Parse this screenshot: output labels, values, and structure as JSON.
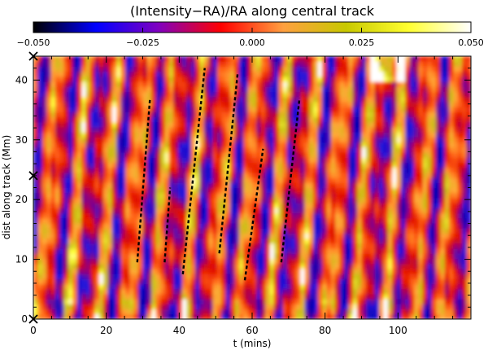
{
  "chart_data": {
    "type": "heatmap",
    "title": "(Intensity−RA)/RA along central track",
    "xlabel": "t (mins)",
    "ylabel": "dist along track (Mm)",
    "xlim": [
      0,
      120
    ],
    "ylim": [
      0,
      44
    ],
    "xticks": [
      0,
      20,
      40,
      60,
      80,
      100
    ],
    "yticks": [
      0,
      10,
      20,
      30,
      40
    ],
    "colorbar": {
      "range": [
        -0.05,
        0.05
      ],
      "ticks": [
        "−0.050",
        "−0.025",
        "0.000",
        "0.025",
        "0.050"
      ],
      "colormap": [
        "#000000",
        "#0000ff",
        "#8000c0",
        "#ff0000",
        "#ffa040",
        "#c8c800",
        "#ffff30",
        "#ffffff"
      ]
    },
    "markers_y": [
      44,
      24,
      0
    ],
    "tracks": [
      {
        "x": [
          28.5,
          32
        ],
        "y": [
          9.5,
          37
        ]
      },
      {
        "x": [
          36,
          37.5
        ],
        "y": [
          9.5,
          22
        ]
      },
      {
        "x": [
          41,
          47
        ],
        "y": [
          7.5,
          42
        ]
      },
      {
        "x": [
          51,
          56
        ],
        "y": [
          11,
          41
        ]
      },
      {
        "x": [
          58,
          63
        ],
        "y": [
          6.5,
          28.5
        ]
      },
      {
        "x": [
          68,
          73
        ],
        "y": [
          9.5,
          37
        ]
      }
    ]
  }
}
